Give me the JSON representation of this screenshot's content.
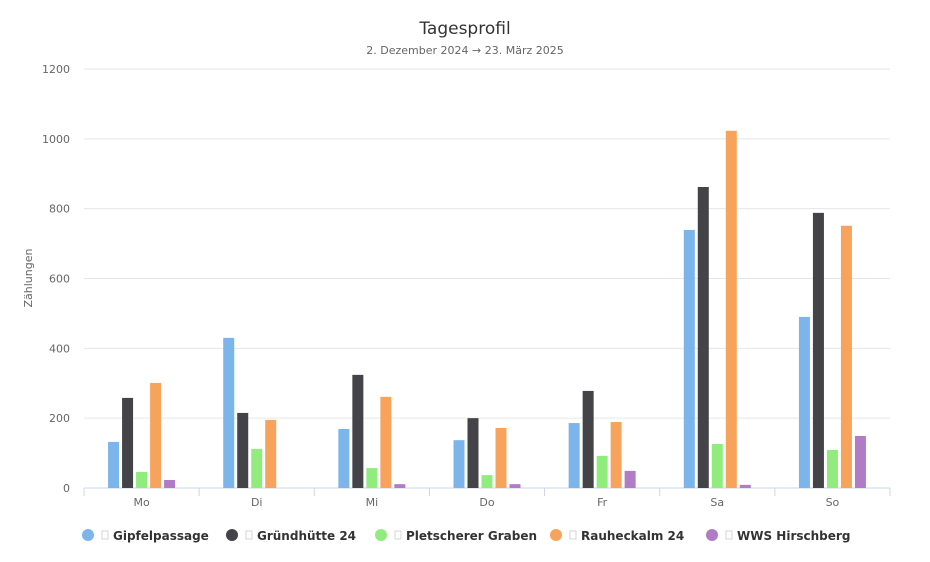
{
  "chart_data": {
    "type": "bar",
    "title": "Tagesprofil",
    "subtitle": "2. Dezember 2024 → 23. März 2025",
    "xlabel": "",
    "ylabel": "Zählungen",
    "ylim": [
      0,
      1200
    ],
    "yticks": [
      0,
      200,
      400,
      600,
      800,
      1000,
      1200
    ],
    "categories": [
      "Mo",
      "Di",
      "Mi",
      "Do",
      "Fr",
      "Sa",
      "So"
    ],
    "grid": true,
    "legend": "bottom",
    "series": [
      {
        "name": "Gipfelpassage",
        "color": "#7cb5ec",
        "values": [
          132,
          430,
          169,
          137,
          186,
          739,
          490
        ]
      },
      {
        "name": "Gründhütte 24",
        "color": "#434348",
        "values": [
          258,
          215,
          324,
          200,
          278,
          862,
          788
        ]
      },
      {
        "name": "Pletscherer Graben",
        "color": "#90ed7d",
        "values": [
          46,
          112,
          57,
          37,
          92,
          126,
          109
        ]
      },
      {
        "name": "Rauheckalm 24",
        "color": "#f7a35c",
        "values": [
          301,
          195,
          261,
          172,
          189,
          1023,
          751
        ]
      },
      {
        "name": "WWS Hirschberg",
        "color": "#b07cc6",
        "values": [
          23,
          0,
          11,
          11,
          49,
          9,
          149
        ]
      }
    ]
  }
}
